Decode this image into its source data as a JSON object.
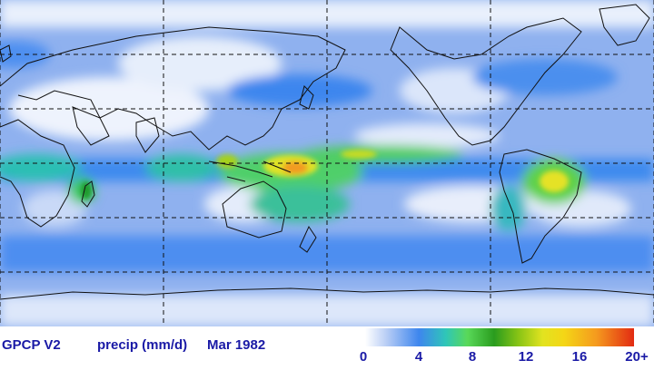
{
  "caption": {
    "dataset": "GPCP V2",
    "variable": "precip (mm/d)",
    "date": "Mar  1982"
  },
  "colorbar": {
    "ticks": [
      "0",
      "4",
      "8",
      "12",
      "16",
      "20+"
    ],
    "colors": [
      "#ffffff",
      "#b8cdf5",
      "#3e86ee",
      "#2fc6b8",
      "#59d959",
      "#2a9c1e",
      "#88c415",
      "#e2e320",
      "#f4d616",
      "#f59a1e",
      "#e22b12"
    ]
  },
  "map": {
    "ocean_color": "#7ea6ee",
    "land_color": "#e4ecfb",
    "grid_style": "dashed",
    "meridian_lons": [
      -160,
      -100,
      0,
      60,
      120
    ],
    "parallel_lats": [
      60,
      30,
      0,
      -30,
      -60
    ]
  }
}
